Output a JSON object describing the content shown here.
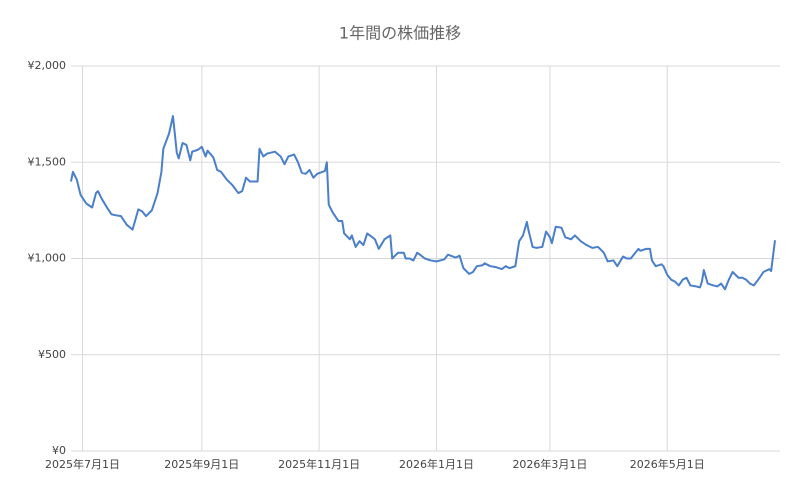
{
  "chart_data": {
    "type": "line",
    "title": "1年間の株価推移",
    "x": [
      "2025-06-25",
      "2025-06-26",
      "2025-06-28",
      "2025-06-30",
      "2025-07-03",
      "2025-07-06",
      "2025-07-08",
      "2025-07-09",
      "2025-07-11",
      "2025-07-14",
      "2025-07-16",
      "2025-07-18",
      "2025-07-21",
      "2025-07-24",
      "2025-07-27",
      "2025-07-30",
      "2025-08-01",
      "2025-08-03",
      "2025-08-06",
      "2025-08-09",
      "2025-08-11",
      "2025-08-12",
      "2025-08-15",
      "2025-08-17",
      "2025-08-19",
      "2025-08-20",
      "2025-08-22",
      "2025-08-24",
      "2025-08-26",
      "2025-08-27",
      "2025-08-30",
      "2025-09-01",
      "2025-09-03",
      "2025-09-04",
      "2025-09-07",
      "2025-09-09",
      "2025-09-11",
      "2025-09-14",
      "2025-09-17",
      "2025-09-20",
      "2025-09-22",
      "2025-09-24",
      "2025-09-26",
      "2025-09-30",
      "2025-10-01",
      "2025-10-03",
      "2025-10-05",
      "2025-10-09",
      "2025-10-12",
      "2025-10-14",
      "2025-10-16",
      "2025-10-19",
      "2025-10-21",
      "2025-10-23",
      "2025-10-25",
      "2025-10-27",
      "2025-10-29",
      "2025-10-31",
      "2025-11-04",
      "2025-11-05",
      "2025-11-06",
      "2025-11-08",
      "2025-11-11",
      "2025-11-13",
      "2025-11-14",
      "2025-11-17",
      "2025-11-18",
      "2025-11-20",
      "2025-11-22",
      "2025-11-24",
      "2025-11-26",
      "2025-11-30",
      "2025-12-02",
      "2025-12-05",
      "2025-12-08",
      "2025-12-09",
      "2025-12-12",
      "2025-12-15",
      "2025-12-16",
      "2025-12-18",
      "2025-12-20",
      "2025-12-22",
      "2025-12-26",
      "2025-12-29",
      "2026-01-01",
      "2026-01-05",
      "2026-01-07",
      "2026-01-11",
      "2026-01-13",
      "2026-01-15",
      "2026-01-18",
      "2026-01-20",
      "2026-01-22",
      "2026-01-25",
      "2026-01-26",
      "2026-01-29",
      "2026-02-01",
      "2026-02-04",
      "2026-02-06",
      "2026-02-08",
      "2026-02-11",
      "2026-02-13",
      "2026-02-15",
      "2026-02-17",
      "2026-02-18",
      "2026-02-20",
      "2026-02-22",
      "2026-02-25",
      "2026-02-27",
      "2026-03-01",
      "2026-03-02",
      "2026-03-04",
      "2026-03-07",
      "2026-03-09",
      "2026-03-12",
      "2026-03-14",
      "2026-03-17",
      "2026-03-20",
      "2026-03-23",
      "2026-03-26",
      "2026-03-29",
      "2026-03-31",
      "2026-04-03",
      "2026-04-05",
      "2026-04-08",
      "2026-04-10",
      "2026-04-12",
      "2026-04-16",
      "2026-04-17",
      "2026-04-20",
      "2026-04-22",
      "2026-04-23",
      "2026-04-25",
      "2026-04-28",
      "2026-04-29",
      "2026-05-01",
      "2026-05-03",
      "2026-05-05",
      "2026-05-07",
      "2026-05-09",
      "2026-05-11",
      "2026-05-13",
      "2026-05-16",
      "2026-05-18",
      "2026-05-19",
      "2026-05-20",
      "2026-05-22",
      "2026-05-25",
      "2026-05-27",
      "2026-05-29",
      "2026-05-31",
      "2026-06-02",
      "2026-06-04",
      "2026-06-07",
      "2026-06-09",
      "2026-06-11",
      "2026-06-13",
      "2026-06-15",
      "2026-06-18",
      "2026-06-20",
      "2026-06-23",
      "2026-06-24",
      "2026-06-26"
    ],
    "series": [
      {
        "color": "#4a7fc9",
        "values": [
          1400,
          1450,
          1410,
          1330,
          1285,
          1265,
          1340,
          1350,
          1310,
          1260,
          1230,
          1225,
          1220,
          1175,
          1150,
          1255,
          1245,
          1220,
          1250,
          1340,
          1450,
          1570,
          1650,
          1740,
          1550,
          1520,
          1600,
          1590,
          1510,
          1555,
          1565,
          1580,
          1530,
          1560,
          1525,
          1460,
          1450,
          1410,
          1380,
          1340,
          1350,
          1420,
          1400,
          1400,
          1570,
          1530,
          1545,
          1555,
          1530,
          1490,
          1530,
          1540,
          1500,
          1445,
          1440,
          1460,
          1420,
          1440,
          1455,
          1500,
          1280,
          1240,
          1195,
          1195,
          1130,
          1100,
          1120,
          1060,
          1090,
          1070,
          1130,
          1100,
          1050,
          1100,
          1120,
          1000,
          1030,
          1030,
          1000,
          1000,
          990,
          1030,
          1000,
          990,
          985,
          995,
          1020,
          1005,
          1015,
          950,
          920,
          930,
          960,
          965,
          975,
          960,
          955,
          945,
          960,
          950,
          960,
          1090,
          1120,
          1190,
          1140,
          1060,
          1055,
          1060,
          1140,
          1110,
          1080,
          1165,
          1160,
          1110,
          1100,
          1120,
          1090,
          1070,
          1055,
          1060,
          1030,
          985,
          990,
          960,
          1010,
          1000,
          1000,
          1050,
          1040,
          1050,
          1050,
          990,
          960,
          970,
          960,
          915,
          890,
          880,
          860,
          890,
          900,
          860,
          855,
          850,
          880,
          940,
          870,
          860,
          855,
          870,
          840,
          890,
          930,
          900,
          900,
          890,
          870,
          860,
          900,
          930,
          945,
          935,
          1095
        ]
      }
    ],
    "xlim": [
      "2025-06-25",
      "2026-06-26"
    ],
    "xticks": [
      {
        "value": "2025-07-01",
        "label": "2025年7月1日"
      },
      {
        "value": "2025-09-01",
        "label": "2025年9月1日"
      },
      {
        "value": "2025-11-01",
        "label": "2025年11月1日"
      },
      {
        "value": "2026-01-01",
        "label": "2026年1月1日"
      },
      {
        "value": "2026-03-01",
        "label": "2026年3月1日"
      },
      {
        "value": "2026-05-01",
        "label": "2026年5月1日"
      }
    ],
    "ylim": [
      0,
      2000
    ],
    "yticks": [
      {
        "value": 0,
        "label": "¥0"
      },
      {
        "value": 500,
        "label": "¥500"
      },
      {
        "value": 1000,
        "label": "¥1,000"
      },
      {
        "value": 1500,
        "label": "¥1,500"
      },
      {
        "value": 2000,
        "label": "¥2,000"
      }
    ],
    "grid": true
  }
}
